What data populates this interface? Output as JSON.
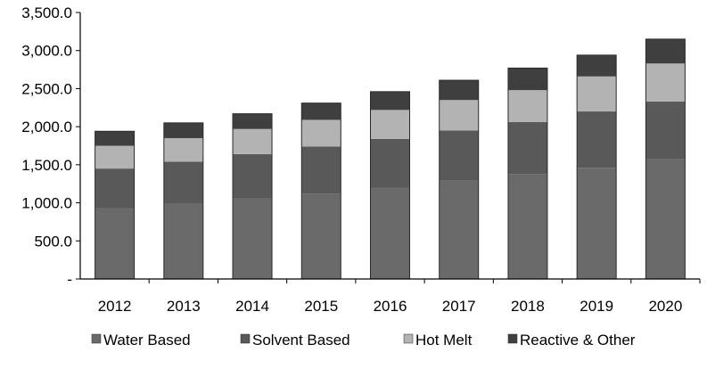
{
  "chart_data": {
    "type": "bar",
    "stacked": true,
    "title": "",
    "xlabel": "",
    "ylabel": "",
    "categories": [
      "2012",
      "2013",
      "2014",
      "2015",
      "2016",
      "2017",
      "2018",
      "2019",
      "2020"
    ],
    "ylim": [
      0,
      3500
    ],
    "y_ticks": [
      {
        "value": 0,
        "label": "-"
      },
      {
        "value": 500,
        "label": "500.0"
      },
      {
        "value": 1000,
        "label": "1,000.0"
      },
      {
        "value": 1500,
        "label": "1,500.0"
      },
      {
        "value": 2000,
        "label": "2,000.0"
      },
      {
        "value": 2500,
        "label": "2,500.0"
      },
      {
        "value": 3000,
        "label": "3,000.0"
      },
      {
        "value": 3500,
        "label": "3,500.0"
      }
    ],
    "grid": false,
    "legend_position": "bottom",
    "series": [
      {
        "name": "Water Based",
        "color": "#6a6a6a",
        "values": [
          930,
          990,
          1060,
          1120,
          1200,
          1290,
          1380,
          1460,
          1580
        ]
      },
      {
        "name": "Solvent Based",
        "color": "#595959",
        "values": [
          520,
          550,
          580,
          620,
          640,
          660,
          680,
          740,
          750
        ]
      },
      {
        "name": "Hot Melt",
        "color": "#b3b3b3",
        "values": [
          300,
          310,
          330,
          350,
          380,
          400,
          420,
          460,
          500
        ]
      },
      {
        "name": "Reactive & Other",
        "color": "#3f3f3f",
        "values": [
          190,
          200,
          200,
          220,
          240,
          260,
          290,
          280,
          320
        ]
      }
    ]
  }
}
